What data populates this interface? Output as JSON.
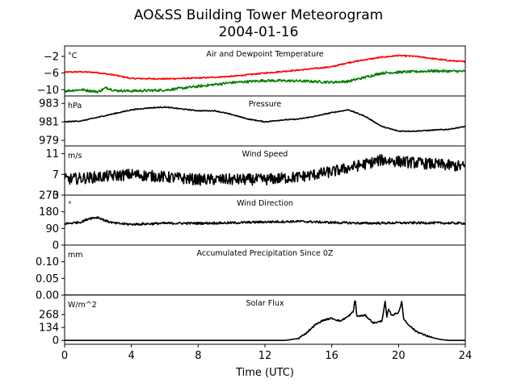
{
  "title": {
    "line1": "AO&SS Building Tower Meteorogram",
    "line2": "2004-01-16"
  },
  "chart_data": {
    "type": "line",
    "xlabel": "Time (UTC)",
    "x_ticks": [
      "0",
      "4",
      "8",
      "12",
      "16",
      "20",
      "24"
    ],
    "xlim": [
      0,
      24
    ],
    "panels": [
      {
        "id": "temp",
        "title": "Air and Dewpoint Temperature",
        "unit": "°C",
        "ylim": [
          -11.5,
          0.5
        ],
        "yticks": [
          -2,
          -6,
          -10
        ],
        "ytick_labels": [
          "−2",
          "−6",
          "−10"
        ],
        "series": [
          {
            "color": "#ff0000",
            "noise": 0.15,
            "x": [
              0,
              1,
              2,
              3,
              4,
              6,
              8,
              10,
              12,
              14,
              16,
              17,
              18,
              19,
              20,
              21,
              22,
              23,
              24
            ],
            "y": [
              -5.8,
              -5.7,
              -5.9,
              -6.5,
              -7.3,
              -7.4,
              -7.2,
              -6.8,
              -6.0,
              -5.3,
              -4.5,
              -3.5,
              -2.8,
              -2.2,
              -1.8,
              -2.0,
              -2.5,
              -3.0,
              -3.3
            ]
          },
          {
            "color": "#008000",
            "noise": 0.3,
            "x": [
              0,
              1,
              2,
              2.5,
              3,
              4,
              6,
              8,
              10,
              12,
              14,
              16,
              17,
              18,
              19,
              20,
              22,
              24
            ],
            "y": [
              -10.3,
              -10.0,
              -10.5,
              -9.5,
              -10.2,
              -10.3,
              -10.1,
              -9.2,
              -8.3,
              -7.8,
              -7.9,
              -8.2,
              -8.0,
              -7.0,
              -6.0,
              -5.8,
              -5.5,
              -5.6
            ]
          }
        ]
      },
      {
        "id": "pressure",
        "title": "Pressure",
        "unit": "hPa",
        "ylim": [
          978.4,
          983.8
        ],
        "yticks": [
          983,
          981,
          979
        ],
        "ytick_labels": [
          "983",
          "981",
          "979"
        ],
        "series": [
          {
            "color": "#000000",
            "noise": 0.05,
            "x": [
              0,
              1,
              2,
              3,
              4,
              5,
              6,
              7,
              8,
              9,
              10,
              11,
              12,
              13,
              14,
              15,
              16,
              17,
              18,
              19,
              20,
              21,
              22,
              23,
              24
            ],
            "y": [
              981.0,
              981.1,
              981.5,
              981.9,
              982.3,
              982.5,
              982.6,
              982.4,
              982.2,
              982.2,
              981.8,
              981.3,
              981.0,
              981.2,
              981.3,
              981.6,
              982.0,
              982.3,
              981.6,
              980.5,
              980.0,
              980.0,
              980.1,
              980.2,
              980.5
            ]
          }
        ]
      },
      {
        "id": "wind-speed",
        "title": "Wind Speed",
        "unit": "m/s",
        "ylim": [
          3,
          12.5
        ],
        "yticks": [
          11,
          7,
          3
        ],
        "ytick_labels": [
          "11",
          "7",
          "3"
        ],
        "series": [
          {
            "color": "#000000",
            "noise": 1.1,
            "x": [
              0,
              2,
              4,
              6,
              8,
              10,
              12,
              14,
              16,
              18,
              19,
              20,
              22,
              24
            ],
            "y": [
              6.0,
              6.5,
              7.0,
              6.5,
              6.0,
              6.0,
              6.0,
              6.5,
              7.5,
              9.0,
              9.8,
              9.5,
              9.0,
              8.5
            ]
          }
        ]
      },
      {
        "id": "wind-dir",
        "title": "Wind Direction",
        "unit": "°",
        "ylim": [
          0,
          270
        ],
        "yticks": [
          270,
          180,
          90,
          0
        ],
        "ytick_labels": [
          "270",
          "180",
          "90",
          "0"
        ],
        "series": [
          {
            "color": "#000000",
            "noise": 6,
            "x": [
              0,
              1,
              1.5,
              2,
              2.5,
              3,
              4,
              6,
              8,
              10,
              12,
              14,
              16,
              18,
              20,
              22,
              24
            ],
            "y": [
              115,
              125,
              145,
              150,
              130,
              118,
              112,
              118,
              118,
              120,
              125,
              128,
              122,
              118,
              120,
              120,
              118
            ]
          }
        ]
      },
      {
        "id": "precip",
        "title": "Accumulated Precipitation Since 0Z",
        "unit": "mm",
        "ylim": [
          0,
          0.15
        ],
        "yticks": [
          0.1,
          0.05,
          0.0
        ],
        "ytick_labels": [
          "0.10",
          "0.05",
          "0.00"
        ],
        "series": [
          {
            "color": "#000000",
            "noise": 0,
            "x": [
              0,
              24
            ],
            "y": [
              0,
              0
            ]
          }
        ]
      },
      {
        "id": "solar",
        "title": "Solar Flux",
        "unit": "W/m^2",
        "ylim": [
          -40,
          470
        ],
        "yticks": [
          268,
          134,
          0
        ],
        "ytick_labels": [
          "268",
          "134",
          "0"
        ],
        "series": [
          {
            "color": "#000000",
            "noise": 8,
            "noise_range": [
              14,
              22
            ],
            "x": [
              0,
              13.2,
              14,
              14.5,
              15,
              15.5,
              16,
              16.5,
              17,
              17.3,
              17.4,
              17.5,
              18,
              18.5,
              19,
              19.2,
              19.3,
              19.4,
              19.6,
              20,
              20.2,
              20.3,
              20.5,
              21,
              21.5,
              22,
              22.5,
              23,
              23.5,
              24
            ],
            "y": [
              0,
              0,
              20,
              80,
              160,
              210,
              230,
              200,
              250,
              300,
              440,
              250,
              260,
              180,
              200,
              400,
              240,
              320,
              260,
              290,
              400,
              230,
              180,
              100,
              60,
              30,
              10,
              0,
              0,
              0
            ]
          }
        ]
      }
    ]
  }
}
